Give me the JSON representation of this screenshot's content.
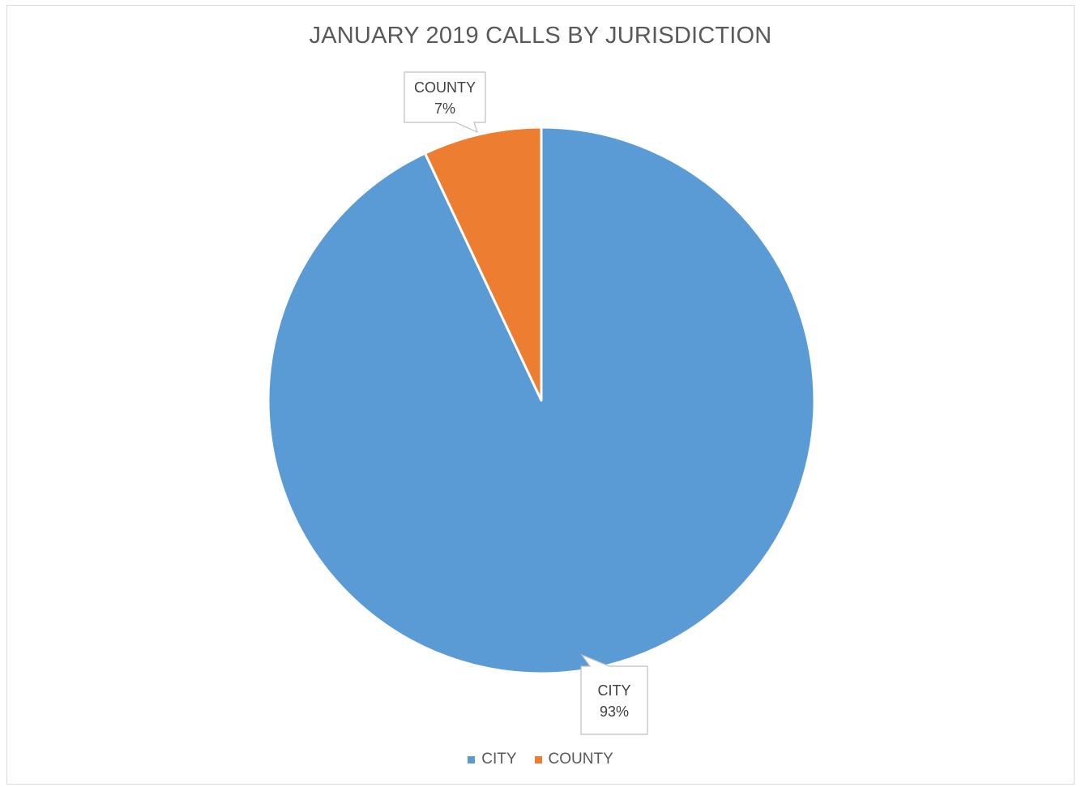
{
  "chart_data": {
    "type": "pie",
    "title": "JANUARY 2019 CALLS BY JURISDICTION",
    "categories": [
      "CITY",
      "COUNTY"
    ],
    "values": [
      93,
      7
    ],
    "value_suffix": "%",
    "colors": [
      "#5B9BD5",
      "#ED7D31"
    ],
    "start_angle_deg": 0,
    "direction": "clockwise",
    "legend_position": "bottom",
    "data_labels": "callout-category-and-percent"
  }
}
